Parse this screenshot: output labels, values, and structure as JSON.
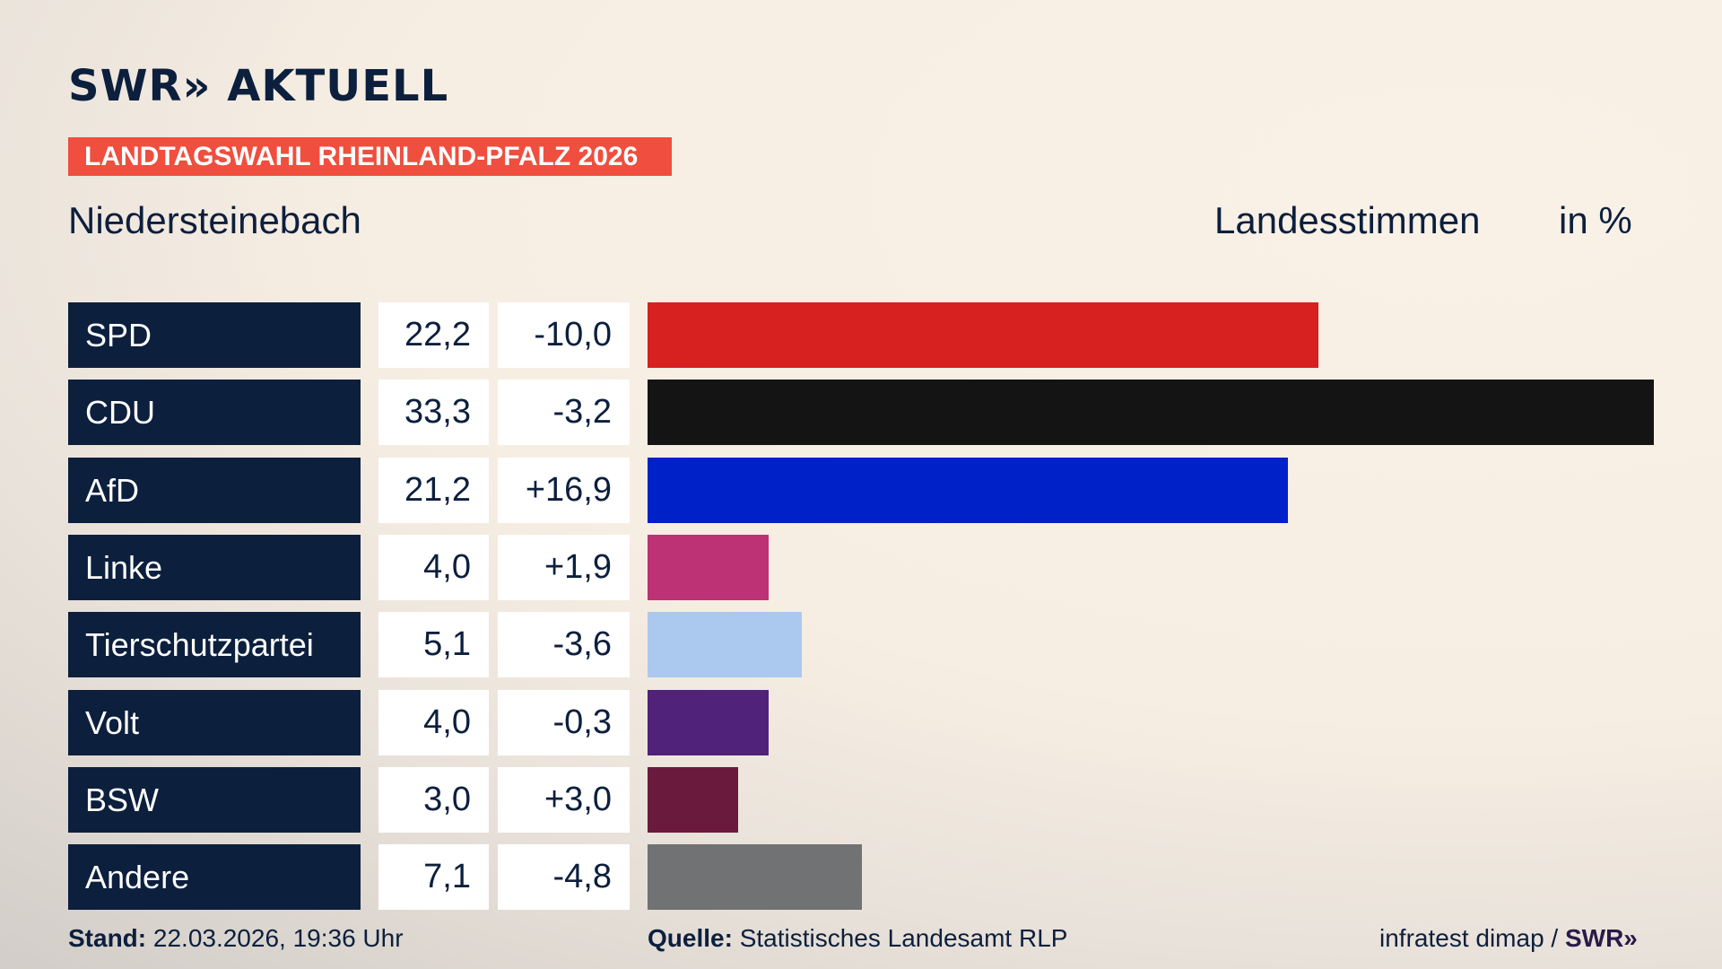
{
  "header": {
    "logo": "SWR» AKTUELL",
    "banner": "LANDTAGSWAHL RHEINLAND-PFALZ 2026",
    "place": "Niedersteinebach",
    "measure": "Landesstimmen",
    "unit": "in %"
  },
  "chart_data": {
    "type": "bar",
    "orientation": "horizontal",
    "categories": [
      "SPD",
      "CDU",
      "AfD",
      "Linke",
      "Tierschutzpartei",
      "Volt",
      "BSW",
      "Andere"
    ],
    "values": [
      22.2,
      33.3,
      21.2,
      4.0,
      5.1,
      4.0,
      3.0,
      7.1
    ],
    "value_labels": [
      "22,2",
      "33,3",
      "21,2",
      "4,0",
      "5,1",
      "4,0",
      "3,0",
      "7,1"
    ],
    "change_labels": [
      "-10,0",
      "-3,2",
      "+16,9",
      "+1,9",
      "-3,6",
      "-0,3",
      "+3,0",
      "-4,8"
    ],
    "changes": [
      -10.0,
      -3.2,
      16.9,
      1.9,
      -3.6,
      -0.3,
      3.0,
      -4.8
    ],
    "colors": [
      "#d72020",
      "#141414",
      "#0021c8",
      "#bd3175",
      "#abc8ef",
      "#50227a",
      "#6a1a3c",
      "#717273"
    ],
    "xlim": [
      0,
      33.3
    ],
    "grid": false
  },
  "footer": {
    "stand_label": "Stand:",
    "stand_value": "22.03.2026, 19:36 Uhr",
    "source_label": "Quelle:",
    "source_value": "Statistisches Landesamt RLP",
    "credit": "infratest dimap /",
    "credit_brand": "SWR»"
  }
}
